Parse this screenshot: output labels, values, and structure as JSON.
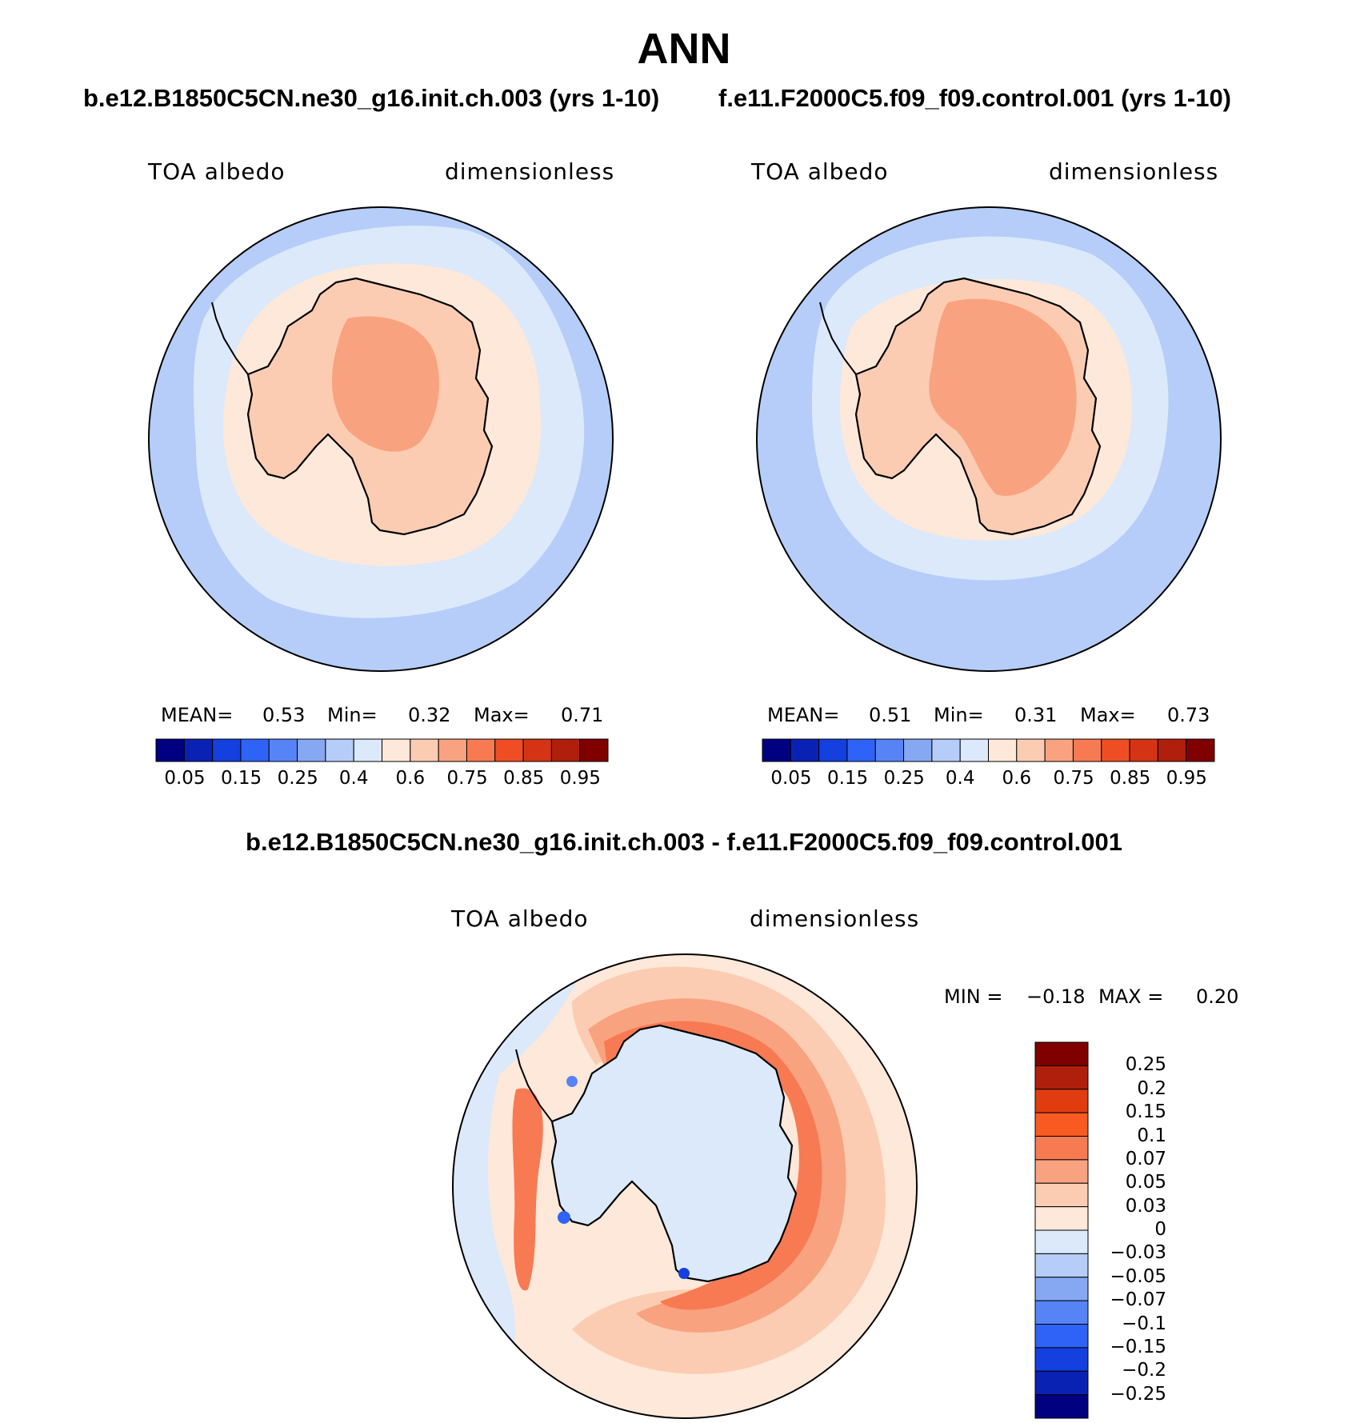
{
  "figure": {
    "title": "ANN",
    "left_case_title": "b.e12.B1850C5CN.ne30_g16.init.ch.003 (yrs 1-10)",
    "right_case_title": "f.e11.F2000C5.f09_f09.control.001 (yrs 1-10)",
    "diff_title": "b.e12.B1850C5CN.ne30_g16.init.ch.003 - f.e11.F2000C5.f09_f09.control.001"
  },
  "chart_data": [
    {
      "type": "heatmap",
      "projection": "south-polar-stereographic",
      "variable": "TOA albedo",
      "units": "dimensionless",
      "case": "b.e12.B1850C5CN.ne30_g16.init.ch.003 (yrs 1-10)",
      "stats": {
        "mean_label": "MEAN=",
        "mean": "0.53",
        "min_label": "Min=",
        "min": "0.32",
        "max_label": "Max=",
        "max": "0.71"
      },
      "colorbar_ticks": [
        "0.05",
        "0.15",
        "0.25",
        "0.4",
        "0.6",
        "0.75",
        "0.85",
        "0.95"
      ]
    },
    {
      "type": "heatmap",
      "projection": "south-polar-stereographic",
      "variable": "TOA albedo",
      "units": "dimensionless",
      "case": "f.e11.F2000C5.f09_f09.control.001 (yrs 1-10)",
      "stats": {
        "mean_label": "MEAN=",
        "mean": "0.51",
        "min_label": "Min=",
        "min": "0.31",
        "max_label": "Max=",
        "max": "0.73"
      },
      "colorbar_ticks": [
        "0.05",
        "0.15",
        "0.25",
        "0.4",
        "0.6",
        "0.75",
        "0.85",
        "0.95"
      ]
    },
    {
      "type": "heatmap",
      "projection": "south-polar-stereographic",
      "variable": "TOA albedo",
      "units": "dimensionless",
      "case": "b.e12.B1850C5CN.ne30_g16.init.ch.003 - f.e11.F2000C5.f09_f09.control.001",
      "stats": {
        "min_label": "MIN =",
        "min": "−0.18",
        "max_label": "MAX =",
        "max": "0.20"
      },
      "colorbar_ticks": [
        "0.25",
        "0.2",
        "0.15",
        "0.1",
        "0.07",
        "0.05",
        "0.03",
        "0",
        "−0.03",
        "−0.05",
        "−0.07",
        "−0.1",
        "−0.15",
        "−0.2",
        "−0.25"
      ]
    }
  ],
  "palettes": {
    "field": [
      "#000080",
      "#0a22b4",
      "#1440e0",
      "#2f63f7",
      "#5684f6",
      "#86a8f3",
      "#b5cdf8",
      "#dbe9fb",
      "#fde8d9",
      "#fbccb2",
      "#f9a27f",
      "#f77a53",
      "#ef4e25",
      "#d53414",
      "#b01f0c",
      "#800000"
    ],
    "diff": [
      "#800000",
      "#b01f0c",
      "#e03c10",
      "#f85a22",
      "#f77a53",
      "#f9a27f",
      "#fbccb2",
      "#fde8d9",
      "#dbe9fb",
      "#b5cdf8",
      "#86a8f3",
      "#5684f6",
      "#2f63f7",
      "#1440e0",
      "#0a22b4",
      "#000080"
    ]
  }
}
